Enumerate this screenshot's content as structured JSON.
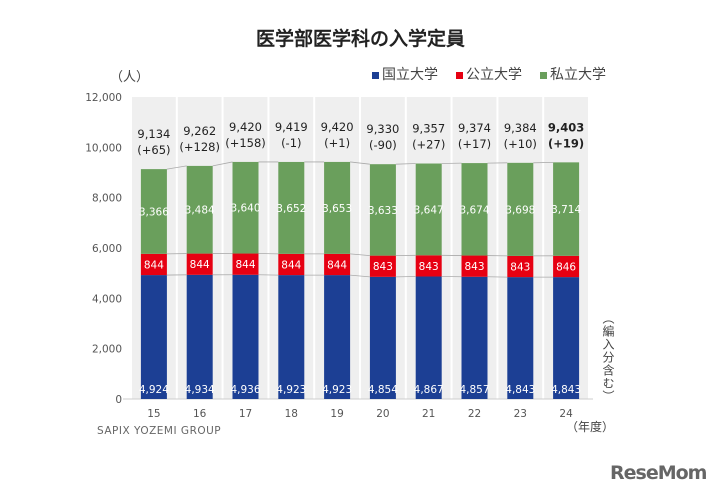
{
  "title": "医学部医学科の入学定員",
  "unit_label": "（人）",
  "x_unit_label": "（年度）",
  "note": "（編入分含む）",
  "brand": "SAPIX YOZEMI GROUP",
  "logo": "ReseMom",
  "colors": {
    "national": "#1c3f94",
    "public": "#e60012",
    "private": "#6a9f5c",
    "band": "#efefef"
  },
  "chart_data": {
    "type": "bar",
    "stacked": true,
    "title": "医学部医学科の入学定員",
    "xlabel": "（年度）",
    "ylabel": "（人）",
    "ylim": [
      0,
      12000
    ],
    "yticks": [
      "0",
      "2,000",
      "4,000",
      "6,000",
      "8,000",
      "10,000",
      "12,000"
    ],
    "ytick_values": [
      0,
      2000,
      4000,
      6000,
      8000,
      10000,
      12000
    ],
    "categories": [
      "15",
      "16",
      "17",
      "18",
      "19",
      "20",
      "21",
      "22",
      "23",
      "24"
    ],
    "legend_position": "top-right",
    "series": [
      {
        "name": "国立大学",
        "values": [
          4924,
          4934,
          4936,
          4923,
          4923,
          4854,
          4867,
          4857,
          4843,
          4843
        ],
        "labels": [
          "4,924",
          "4,934",
          "4,936",
          "4,923",
          "4,923",
          "4,854",
          "4,867",
          "4,857",
          "4,843",
          "4,843"
        ]
      },
      {
        "name": "公立大学",
        "values": [
          844,
          844,
          844,
          844,
          844,
          843,
          843,
          843,
          843,
          846
        ],
        "labels": [
          "844",
          "844",
          "844",
          "844",
          "844",
          "843",
          "843",
          "843",
          "843",
          "846"
        ]
      },
      {
        "name": "私立大学",
        "values": [
          3366,
          3484,
          3640,
          3652,
          3653,
          3633,
          3647,
          3674,
          3698,
          3714
        ],
        "labels": [
          "3,366",
          "3,484",
          "3,640",
          "3,652",
          "3,653",
          "3,633",
          "3,647",
          "3,674",
          "3,698",
          "3,714"
        ]
      }
    ],
    "totals": [
      "9,134",
      "9,262",
      "9,420",
      "9,419",
      "9,420",
      "9,330",
      "9,357",
      "9,374",
      "9,384",
      "9,403"
    ],
    "changes": [
      "(+65)",
      "(+128)",
      "(+158)",
      "(-1)",
      "(+1)",
      "(-90)",
      "(+27)",
      "(+17)",
      "(+10)",
      "(+19)"
    ]
  }
}
